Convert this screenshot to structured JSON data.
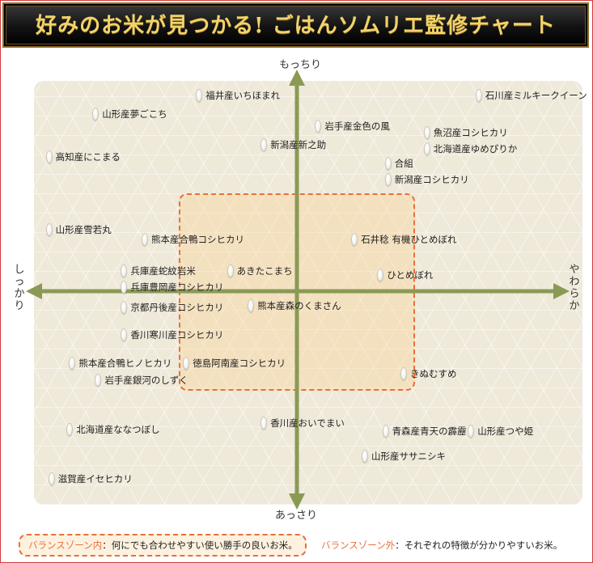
{
  "title": "好みのお米が見つかる! ごはんソムリエ監修チャート",
  "axes": {
    "top": "もっちり",
    "bottom": "あっさり",
    "left": "しっかり",
    "right": "やわらか"
  },
  "legend": {
    "inside_key": "バランスゾーン内",
    "inside_text": "：何にでも合わせやすい使い勝手の良いお米。",
    "outside_key": "バランスゾーン外",
    "outside_text": "：それぞれの特徴が分かりやすいお米。"
  },
  "colors": {
    "axis": "#8a9a55",
    "zone_border": "#e8703c",
    "zone_fill": "#fad296",
    "banner_text": "#f2d36b"
  },
  "chart_data": {
    "type": "scatter",
    "title": "好みのお米が見つかる! ごはんソムリエ監修チャート",
    "xlabel_left": "しっかり",
    "xlabel_right": "やわらか",
    "ylabel_top": "もっちり",
    "ylabel_bottom": "あっさり",
    "xlim": [
      -1,
      1
    ],
    "ylim": [
      -1,
      1
    ],
    "balance_zone": {
      "x": [
        -0.45,
        0.47
      ],
      "y": [
        -0.45,
        0.48
      ]
    },
    "points": [
      {
        "label": "福井産いちほまれ",
        "x": -0.39,
        "y": 0.95
      },
      {
        "label": "山形産夢ごこち",
        "x": -0.79,
        "y": 0.86
      },
      {
        "label": "石川産ミルキークイーン",
        "x": 0.69,
        "y": 0.95
      },
      {
        "label": "岩手産金色の風",
        "x": 0.07,
        "y": 0.8
      },
      {
        "label": "魚沼産コシヒカリ",
        "x": 0.49,
        "y": 0.77
      },
      {
        "label": "新潟産新之助",
        "x": -0.14,
        "y": 0.71
      },
      {
        "label": "北海道産ゆめぴりか",
        "x": 0.49,
        "y": 0.69
      },
      {
        "label": "高知産にこまる",
        "x": -0.97,
        "y": 0.65
      },
      {
        "label": "合組",
        "x": 0.34,
        "y": 0.62
      },
      {
        "label": "新潟産コシヒカリ",
        "x": 0.34,
        "y": 0.54
      },
      {
        "label": "山形産雪若丸",
        "x": -0.97,
        "y": 0.3
      },
      {
        "label": "熊本産合鴨コシヒカリ",
        "x": -0.6,
        "y": 0.25
      },
      {
        "label": "石井稔 有機ひとめぼれ",
        "x": 0.21,
        "y": 0.25
      },
      {
        "label": "兵庫産蛇紋岩米",
        "x": -0.68,
        "y": 0.1
      },
      {
        "label": "あきたこまち",
        "x": -0.27,
        "y": 0.1
      },
      {
        "label": "ひとめぼれ",
        "x": 0.31,
        "y": 0.08
      },
      {
        "label": "兵庫豊岡産コシヒカリ",
        "x": -0.68,
        "y": 0.02
      },
      {
        "label": "京都丹後産コシヒカリ",
        "x": -0.68,
        "y": -0.08
      },
      {
        "label": "熊本産森のくまさん",
        "x": -0.19,
        "y": -0.07
      },
      {
        "label": "香川寒川産コシヒカリ",
        "x": -0.68,
        "y": -0.21
      },
      {
        "label": "熊本産合鴨ヒノヒカリ",
        "x": -0.88,
        "y": -0.35
      },
      {
        "label": "徳島阿南産コシヒカリ",
        "x": -0.44,
        "y": -0.35
      },
      {
        "label": "岩手産銀河のしずく",
        "x": -0.78,
        "y": -0.43
      },
      {
        "label": "きぬむすめ",
        "x": 0.4,
        "y": -0.4
      },
      {
        "label": "香川産おいでまい",
        "x": -0.14,
        "y": -0.64
      },
      {
        "label": "北海道産ななつぼし",
        "x": -0.89,
        "y": -0.67
      },
      {
        "label": "青森産青天の霹靂",
        "x": 0.33,
        "y": -0.68
      },
      {
        "label": "山形産つや姫",
        "x": 0.66,
        "y": -0.68
      },
      {
        "label": "山形産ササニシキ",
        "x": 0.25,
        "y": -0.8
      },
      {
        "label": "滋賀産イセヒカリ",
        "x": -0.96,
        "y": -0.91
      }
    ]
  }
}
